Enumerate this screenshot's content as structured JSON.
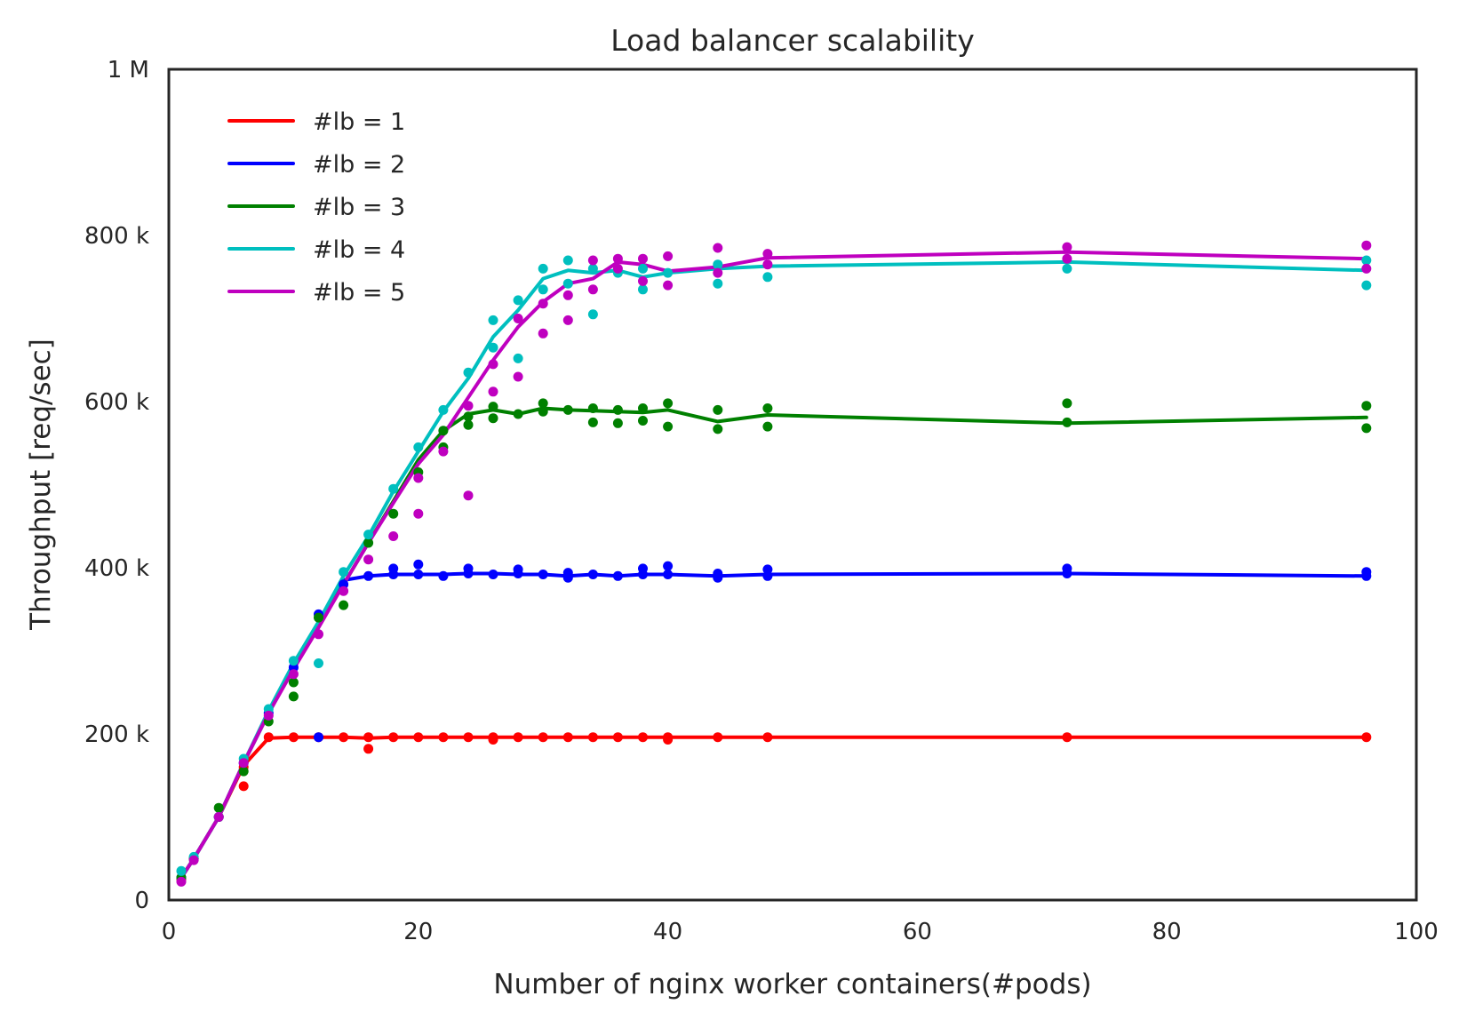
{
  "chart_data": {
    "type": "line",
    "title": "Load balancer scalability",
    "xlabel": "Number of nginx worker containers(#pods)",
    "ylabel": "Throughput [req/sec]",
    "xlim": [
      0,
      100
    ],
    "ylim": [
      0,
      1000000
    ],
    "x_ticks": [
      0,
      20,
      40,
      60,
      80,
      100
    ],
    "x_tick_labels": [
      "0",
      "20",
      "40",
      "60",
      "80",
      "100"
    ],
    "y_ticks": [
      0,
      200000,
      400000,
      600000,
      800000,
      1000000
    ],
    "y_tick_labels": [
      "0",
      "200 k",
      "400 k",
      "600 k",
      "800 k",
      "1 M"
    ],
    "grid": false,
    "legend_position": "upper-left",
    "x": [
      1,
      2,
      4,
      6,
      8,
      10,
      12,
      14,
      16,
      18,
      20,
      22,
      24,
      26,
      28,
      30,
      32,
      34,
      36,
      38,
      40,
      44,
      48,
      72,
      96
    ],
    "series": [
      {
        "name": "#lb = 1",
        "color": "#ff0000",
        "values": [
          27000,
          50000,
          100000,
          162000,
          195000,
          196000,
          196000,
          196000,
          195000,
          196000,
          196000,
          196000,
          196000,
          196000,
          196000,
          196000,
          196000,
          196000,
          196000,
          196000,
          196000,
          196000,
          196000,
          196000,
          196000
        ],
        "points": [
          [
            1,
            25000
          ],
          [
            2,
            50000
          ],
          [
            4,
            100000
          ],
          [
            6,
            137000
          ],
          [
            6,
            160000
          ],
          [
            8,
            196000
          ],
          [
            10,
            196000
          ],
          [
            12,
            196000
          ],
          [
            14,
            196000
          ],
          [
            16,
            182000
          ],
          [
            16,
            196000
          ],
          [
            18,
            196000
          ],
          [
            20,
            196000
          ],
          [
            22,
            196000
          ],
          [
            24,
            196000
          ],
          [
            26,
            193000
          ],
          [
            26,
            196000
          ],
          [
            28,
            196000
          ],
          [
            30,
            196000
          ],
          [
            32,
            196000
          ],
          [
            34,
            196000
          ],
          [
            36,
            196000
          ],
          [
            38,
            196000
          ],
          [
            40,
            193000
          ],
          [
            40,
            196000
          ],
          [
            44,
            196000
          ],
          [
            48,
            196000
          ],
          [
            72,
            196000
          ],
          [
            96,
            196000
          ]
        ]
      },
      {
        "name": "#lb = 2",
        "color": "#0000ff",
        "values": [
          27000,
          50000,
          100000,
          165000,
          225000,
          280000,
          330000,
          385000,
          390000,
          392000,
          392000,
          392000,
          393000,
          393000,
          392000,
          392000,
          390000,
          392000,
          390000,
          392000,
          392000,
          390000,
          392000,
          393000,
          390000
        ],
        "points": [
          [
            1,
            27000
          ],
          [
            2,
            50000
          ],
          [
            4,
            100000
          ],
          [
            6,
            165000
          ],
          [
            8,
            225000
          ],
          [
            10,
            280000
          ],
          [
            12,
            196000
          ],
          [
            12,
            344000
          ],
          [
            14,
            380000
          ],
          [
            16,
            390000
          ],
          [
            18,
            392000
          ],
          [
            18,
            399000
          ],
          [
            20,
            392000
          ],
          [
            20,
            404000
          ],
          [
            22,
            390000
          ],
          [
            24,
            393000
          ],
          [
            24,
            399000
          ],
          [
            26,
            392000
          ],
          [
            28,
            393000
          ],
          [
            28,
            398000
          ],
          [
            30,
            392000
          ],
          [
            32,
            388000
          ],
          [
            32,
            394000
          ],
          [
            34,
            392000
          ],
          [
            36,
            390000
          ],
          [
            38,
            392000
          ],
          [
            38,
            399000
          ],
          [
            40,
            392000
          ],
          [
            40,
            402000
          ],
          [
            44,
            388000
          ],
          [
            44,
            393000
          ],
          [
            48,
            390000
          ],
          [
            48,
            398000
          ],
          [
            72,
            393000
          ],
          [
            72,
            399000
          ],
          [
            96,
            390000
          ],
          [
            96,
            395000
          ]
        ]
      },
      {
        "name": "#lb = 3",
        "color": "#008000",
        "values": [
          27000,
          50000,
          100000,
          165000,
          225000,
          280000,
          330000,
          380000,
          430000,
          480000,
          530000,
          565000,
          585000,
          590000,
          585000,
          592000,
          590000,
          589000,
          588000,
          587000,
          590000,
          576000,
          584000,
          574000,
          581000
        ],
        "points": [
          [
            1,
            27000
          ],
          [
            2,
            50000
          ],
          [
            4,
            100000
          ],
          [
            4,
            111000
          ],
          [
            6,
            155000
          ],
          [
            8,
            215000
          ],
          [
            10,
            245000
          ],
          [
            10,
            262000
          ],
          [
            12,
            340000
          ],
          [
            14,
            355000
          ],
          [
            16,
            430000
          ],
          [
            18,
            465000
          ],
          [
            20,
            515000
          ],
          [
            22,
            545000
          ],
          [
            22,
            565000
          ],
          [
            24,
            572000
          ],
          [
            24,
            582000
          ],
          [
            26,
            580000
          ],
          [
            26,
            594000
          ],
          [
            28,
            585000
          ],
          [
            30,
            588000
          ],
          [
            30,
            598000
          ],
          [
            32,
            590000
          ],
          [
            34,
            575000
          ],
          [
            34,
            592000
          ],
          [
            36,
            574000
          ],
          [
            36,
            590000
          ],
          [
            38,
            577000
          ],
          [
            38,
            592000
          ],
          [
            40,
            570000
          ],
          [
            40,
            598000
          ],
          [
            44,
            567000
          ],
          [
            44,
            590000
          ],
          [
            48,
            570000
          ],
          [
            48,
            592000
          ],
          [
            72,
            575000
          ],
          [
            72,
            598000
          ],
          [
            96,
            568000
          ],
          [
            96,
            595000
          ]
        ]
      },
      {
        "name": "#lb = 4",
        "color": "#00bfbf",
        "values": [
          27000,
          50000,
          100000,
          165000,
          228000,
          285000,
          335000,
          390000,
          438000,
          492000,
          540000,
          588000,
          628000,
          678000,
          710000,
          748000,
          758000,
          755000,
          758000,
          750000,
          755000,
          760000,
          763000,
          768000,
          758000
        ],
        "points": [
          [
            1,
            35000
          ],
          [
            2,
            52000
          ],
          [
            4,
            100000
          ],
          [
            6,
            170000
          ],
          [
            8,
            230000
          ],
          [
            10,
            288000
          ],
          [
            12,
            285000
          ],
          [
            14,
            395000
          ],
          [
            16,
            440000
          ],
          [
            18,
            495000
          ],
          [
            20,
            545000
          ],
          [
            22,
            590000
          ],
          [
            24,
            635000
          ],
          [
            26,
            698000
          ],
          [
            26,
            665000
          ],
          [
            28,
            722000
          ],
          [
            28,
            652000
          ],
          [
            30,
            760000
          ],
          [
            30,
            735000
          ],
          [
            32,
            770000
          ],
          [
            32,
            742000
          ],
          [
            34,
            705000
          ],
          [
            34,
            760000
          ],
          [
            36,
            755000
          ],
          [
            38,
            735000
          ],
          [
            38,
            760000
          ],
          [
            40,
            755000
          ],
          [
            44,
            742000
          ],
          [
            44,
            765000
          ],
          [
            48,
            750000
          ],
          [
            72,
            760000
          ],
          [
            96,
            740000
          ],
          [
            96,
            770000
          ]
        ]
      },
      {
        "name": "#lb = 5",
        "color": "#bf00bf",
        "values": [
          27000,
          50000,
          100000,
          165000,
          225000,
          278000,
          328000,
          380000,
          430000,
          478000,
          525000,
          560000,
          605000,
          650000,
          690000,
          720000,
          742000,
          748000,
          768000,
          765000,
          757000,
          762000,
          773000,
          780000,
          772000
        ],
        "points": [
          [
            1,
            22000
          ],
          [
            2,
            48000
          ],
          [
            4,
            100000
          ],
          [
            6,
            165000
          ],
          [
            8,
            222000
          ],
          [
            10,
            272000
          ],
          [
            12,
            320000
          ],
          [
            14,
            372000
          ],
          [
            16,
            410000
          ],
          [
            18,
            438000
          ],
          [
            20,
            465000
          ],
          [
            20,
            508000
          ],
          [
            22,
            540000
          ],
          [
            24,
            487000
          ],
          [
            24,
            595000
          ],
          [
            26,
            612000
          ],
          [
            26,
            645000
          ],
          [
            28,
            630000
          ],
          [
            28,
            700000
          ],
          [
            30,
            682000
          ],
          [
            30,
            718000
          ],
          [
            32,
            698000
          ],
          [
            32,
            728000
          ],
          [
            34,
            735000
          ],
          [
            34,
            770000
          ],
          [
            36,
            760000
          ],
          [
            36,
            772000
          ],
          [
            38,
            745000
          ],
          [
            38,
            772000
          ],
          [
            40,
            740000
          ],
          [
            40,
            775000
          ],
          [
            44,
            755000
          ],
          [
            44,
            785000
          ],
          [
            48,
            765000
          ],
          [
            48,
            778000
          ],
          [
            72,
            772000
          ],
          [
            72,
            786000
          ],
          [
            96,
            760000
          ],
          [
            96,
            788000
          ]
        ]
      }
    ]
  }
}
